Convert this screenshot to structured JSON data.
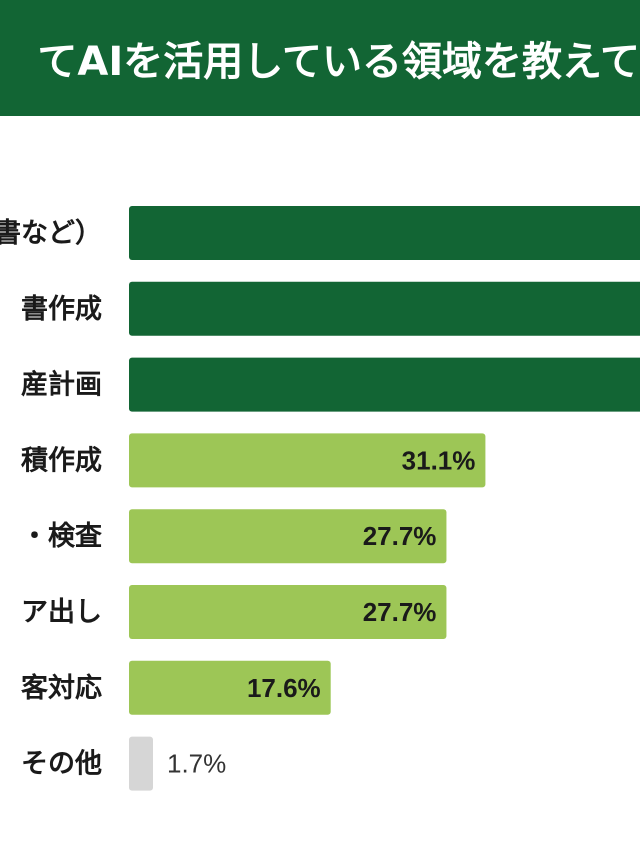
{
  "banner": {
    "title": "てAIを活用している領域を教えて"
  },
  "colors": {
    "banner": "#126534",
    "top_bar": "#126534",
    "bar": "#9DC656",
    "other_bar": "#D6D6D6",
    "label_text": "#1A1A1A",
    "value_text": "#1A1A1A"
  },
  "chart_data": {
    "type": "bar",
    "orientation": "horizontal",
    "categories": [
      "書など）",
      "書作成",
      "産計画",
      "積作成",
      "・検査",
      "ア出し",
      "客対応",
      "その他"
    ],
    "values": [
      null,
      null,
      null,
      31.1,
      27.7,
      27.7,
      17.6,
      1.7
    ],
    "value_labels": [
      "",
      "",
      "",
      "31.1%",
      "27.7%",
      "27.7%",
      "17.6%",
      "1.7%"
    ],
    "highlight_top": 3,
    "xlim": [
      0,
      56
    ],
    "unit": "%"
  }
}
